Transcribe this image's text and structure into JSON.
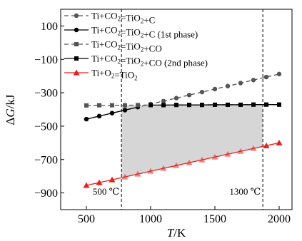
{
  "chart_data": {
    "type": "line",
    "xlabel_parts": [
      "T",
      "/K"
    ],
    "ylabel_parts": [
      "Δ",
      "G",
      "/kJ"
    ],
    "xlim": [
      300,
      2100
    ],
    "ylim": [
      -1000,
      200
    ],
    "xticks": [
      500,
      1000,
      1500,
      2000
    ],
    "yticks": [
      100,
      -100,
      -300,
      -500,
      -700,
      -900
    ],
    "xtick_labels": [
      "500",
      "1000",
      "1500",
      "2000"
    ],
    "ytick_labels": [
      "100",
      "−100",
      "−300",
      "−500",
      "−700",
      "−900"
    ],
    "legend_position": "top-left",
    "grid": false,
    "series": [
      {
        "legend": {
          "pre": "Ti+CO",
          "sub1": "2",
          "mid": "=TiO",
          "sub2": "2",
          "post": "+C"
        },
        "color": "#555555",
        "marker": "circle",
        "dashed": true,
        "filled_fade": false,
        "x": [
          500,
          600,
          700,
          800,
          900,
          1000,
          1100,
          1200,
          1300,
          1400,
          1500,
          1600,
          1700,
          1800,
          1900,
          2000
        ],
        "y": [
          -458,
          -440,
          -422,
          -404,
          -386,
          -368,
          -350,
          -332,
          -314,
          -296,
          -278,
          -260,
          -242,
          -224,
          -206,
          -188
        ]
      },
      {
        "legend": {
          "pre": "Ti+CO",
          "sub1": "2",
          "mid": "=TiO",
          "sub2": "2",
          "post": "+C (1st phase)"
        },
        "color": "#000000",
        "marker": "circle",
        "dashed": false,
        "filled_fade": false,
        "x": [
          500,
          600,
          700,
          800,
          900
        ],
        "y": [
          -458,
          -440,
          -422,
          -404,
          -386
        ]
      },
      {
        "legend": {
          "pre": "Ti+CO",
          "sub1": "2",
          "mid": "=TiO",
          "sub2": "2",
          "post": "+CO"
        },
        "color": "#555555",
        "marker": "square",
        "dashed": true,
        "filled_fade": false,
        "x": [
          500,
          600,
          700,
          800,
          900,
          1000,
          1100,
          1200,
          1300,
          1400,
          1500,
          1600,
          1700,
          1800,
          1900,
          2000
        ],
        "y": [
          -376,
          -375,
          -375,
          -375,
          -374,
          -374,
          -374,
          -373,
          -373,
          -373,
          -372,
          -372,
          -372,
          -371,
          -371,
          -371
        ]
      },
      {
        "legend": {
          "pre": "Ti+CO",
          "sub1": "2",
          "mid": "=TiO",
          "sub2": "2",
          "post": "+CO (2nd phase)"
        },
        "color": "#000000",
        "marker": "square",
        "dashed": false,
        "filled_fade": false,
        "x": [
          1000,
          1100,
          1200,
          1300,
          1400,
          1500,
          1600,
          1700,
          1800,
          1900,
          2000
        ],
        "y": [
          -374,
          -374,
          -373,
          -373,
          -373,
          -372,
          -372,
          -372,
          -371,
          -371,
          -371
        ]
      },
      {
        "legend": {
          "pre": "Ti+O",
          "sub1": "2",
          "mid": "=TiO",
          "sub2": "2",
          "post": ""
        },
        "color": "#e8201c",
        "marker": "triangle",
        "dashed": false,
        "filled_fade": true,
        "x": [
          500,
          600,
          700,
          800,
          900,
          1000,
          1100,
          1200,
          1300,
          1400,
          1500,
          1600,
          1700,
          1800,
          1900,
          2000
        ],
        "y": [
          -855,
          -838,
          -821,
          -804,
          -787,
          -770,
          -753,
          -736,
          -719,
          -702,
          -685,
          -668,
          -651,
          -634,
          -617,
          -600
        ]
      }
    ],
    "region": {
      "x_start": 773,
      "x_end": 1873,
      "color": "#d6d6d6"
    },
    "annotations": [
      {
        "label": "500 ℃",
        "x": 773
      },
      {
        "label": "1300 ℃",
        "x": 1873
      }
    ]
  }
}
